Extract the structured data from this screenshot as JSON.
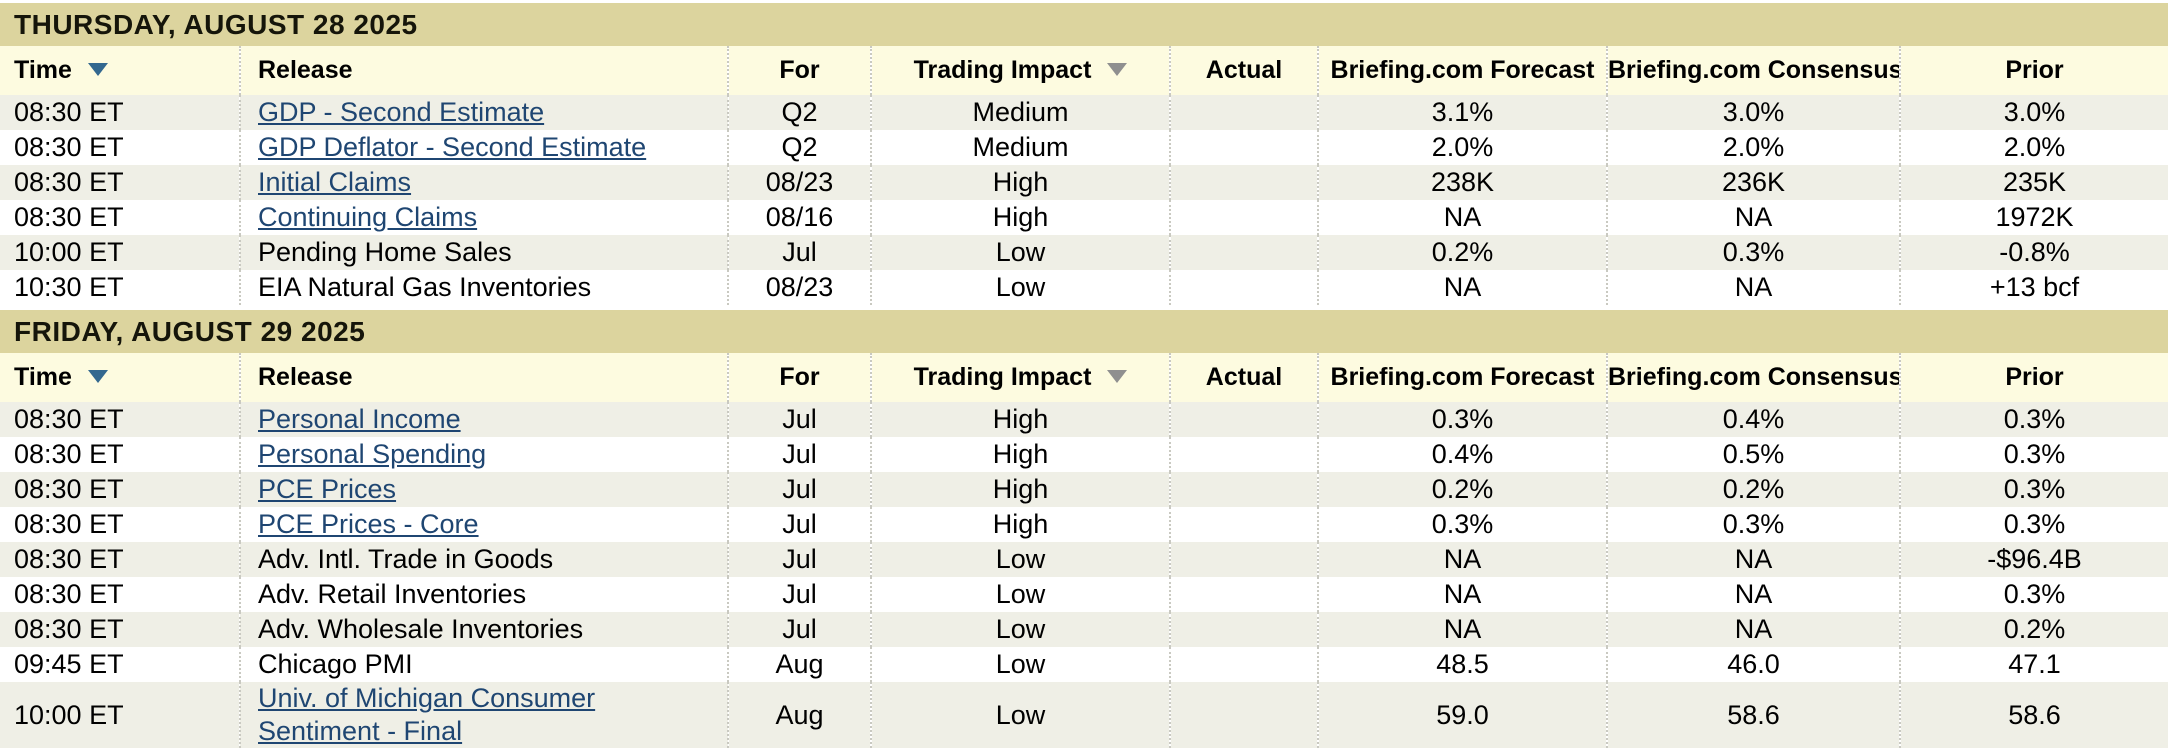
{
  "colors": {
    "tan": "#dcd49e",
    "header_bg": "#fdfbe0",
    "stripe": "#efefe6",
    "link": "#1f4672",
    "arrow_blue": "#33688f",
    "arrow_gray": "#8f8f8f",
    "divider": "#c9c9c1"
  },
  "columns": [
    {
      "label": "Time",
      "key": "time",
      "sort_icon": "blue"
    },
    {
      "label": "Release",
      "key": "release",
      "sort_icon": null
    },
    {
      "label": "For",
      "key": "for",
      "sort_icon": null
    },
    {
      "label": "Trading Impact",
      "key": "impact",
      "sort_icon": "gray"
    },
    {
      "label": "Actual",
      "key": "actual",
      "sort_icon": null
    },
    {
      "label": "Briefing.com Forecast",
      "key": "forecast",
      "sort_icon": null
    },
    {
      "label": "Briefing.com Consensus",
      "key": "consensus",
      "sort_icon": null
    },
    {
      "label": "Prior",
      "key": "prior",
      "sort_icon": null
    }
  ],
  "sections": [
    {
      "date_header": "THURSDAY, AUGUST 28 2025",
      "rows": [
        {
          "time": "08:30 ET",
          "release": "GDP - Second Estimate",
          "release_is_link": true,
          "for": "Q2",
          "impact": "Medium",
          "actual": "",
          "forecast": "3.1%",
          "consensus": "3.0%",
          "prior": "3.0%"
        },
        {
          "time": "08:30 ET",
          "release": "GDP Deflator - Second Estimate",
          "release_is_link": true,
          "for": "Q2",
          "impact": "Medium",
          "actual": "",
          "forecast": "2.0%",
          "consensus": "2.0%",
          "prior": "2.0%"
        },
        {
          "time": "08:30 ET",
          "release": "Initial Claims",
          "release_is_link": true,
          "for": "08/23",
          "impact": "High",
          "actual": "",
          "forecast": "238K",
          "consensus": "236K",
          "prior": "235K"
        },
        {
          "time": "08:30 ET",
          "release": "Continuing Claims",
          "release_is_link": true,
          "for": "08/16",
          "impact": "High",
          "actual": "",
          "forecast": "NA",
          "consensus": "NA",
          "prior": "1972K"
        },
        {
          "time": "10:00 ET",
          "release": "Pending Home Sales",
          "release_is_link": false,
          "for": "Jul",
          "impact": "Low",
          "actual": "",
          "forecast": "0.2%",
          "consensus": "0.3%",
          "prior": "-0.8%"
        },
        {
          "time": "10:30 ET",
          "release": "EIA Natural Gas Inventories",
          "release_is_link": false,
          "for": "08/23",
          "impact": "Low",
          "actual": "",
          "forecast": "NA",
          "consensus": "NA",
          "prior": "+13 bcf"
        }
      ]
    },
    {
      "date_header": "FRIDAY, AUGUST 29 2025",
      "rows": [
        {
          "time": "08:30 ET",
          "release": "Personal Income",
          "release_is_link": true,
          "for": "Jul",
          "impact": "High",
          "actual": "",
          "forecast": "0.3%",
          "consensus": "0.4%",
          "prior": "0.3%"
        },
        {
          "time": "08:30 ET",
          "release": "Personal Spending",
          "release_is_link": true,
          "for": "Jul",
          "impact": "High",
          "actual": "",
          "forecast": "0.4%",
          "consensus": "0.5%",
          "prior": "0.3%"
        },
        {
          "time": "08:30 ET",
          "release": "PCE Prices",
          "release_is_link": true,
          "for": "Jul",
          "impact": "High",
          "actual": "",
          "forecast": "0.2%",
          "consensus": "0.2%",
          "prior": "0.3%"
        },
        {
          "time": "08:30 ET",
          "release": "PCE Prices - Core",
          "release_is_link": true,
          "for": "Jul",
          "impact": "High",
          "actual": "",
          "forecast": "0.3%",
          "consensus": "0.3%",
          "prior": "0.3%"
        },
        {
          "time": "08:30 ET",
          "release": "Adv. Intl. Trade in Goods",
          "release_is_link": false,
          "for": "Jul",
          "impact": "Low",
          "actual": "",
          "forecast": "NA",
          "consensus": "NA",
          "prior": "-$96.4B"
        },
        {
          "time": "08:30 ET",
          "release": "Adv. Retail Inventories",
          "release_is_link": false,
          "for": "Jul",
          "impact": "Low",
          "actual": "",
          "forecast": "NA",
          "consensus": "NA",
          "prior": "0.3%"
        },
        {
          "time": "08:30 ET",
          "release": "Adv. Wholesale Inventories",
          "release_is_link": false,
          "for": "Jul",
          "impact": "Low",
          "actual": "",
          "forecast": "NA",
          "consensus": "NA",
          "prior": "0.2%"
        },
        {
          "time": "09:45 ET",
          "release": "Chicago PMI",
          "release_is_link": false,
          "for": "Aug",
          "impact": "Low",
          "actual": "",
          "forecast": "48.5",
          "consensus": "46.0",
          "prior": "47.1"
        },
        {
          "time": "10:00 ET",
          "release": "Univ. of Michigan Consumer Sentiment - Final",
          "release_is_link": true,
          "for": "Aug",
          "impact": "Low",
          "actual": "",
          "forecast": "59.0",
          "consensus": "58.6",
          "prior": "58.6"
        }
      ]
    }
  ]
}
